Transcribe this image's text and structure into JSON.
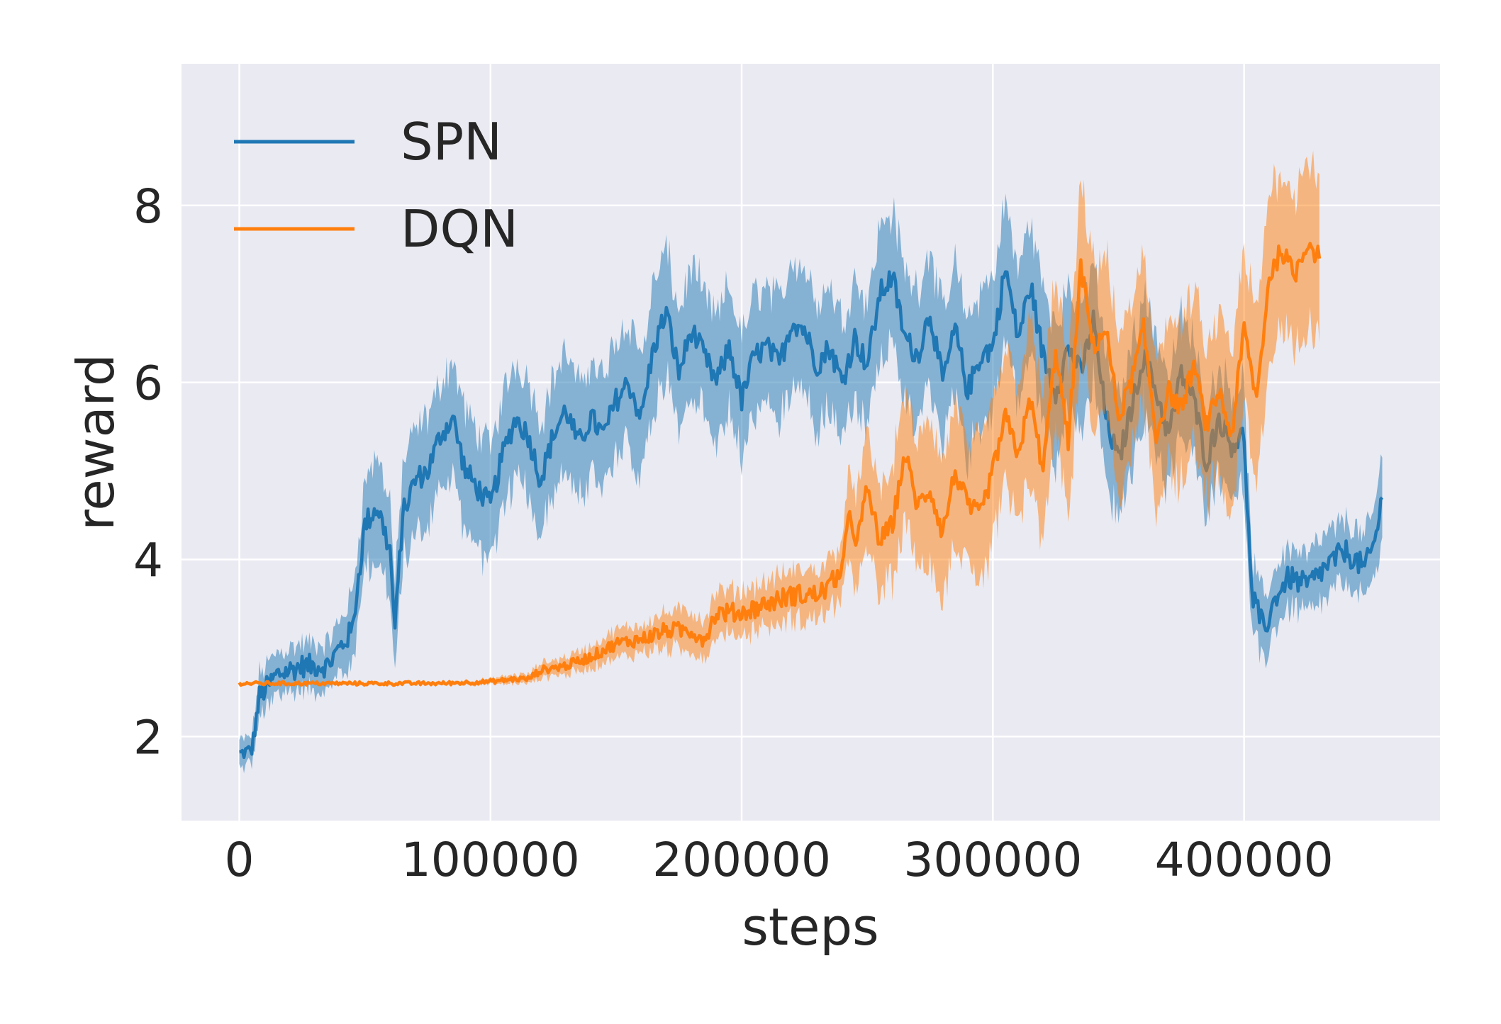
{
  "chart_data": {
    "type": "line",
    "title": "",
    "xlabel": "steps",
    "ylabel": "reward",
    "xlim": [
      -23000,
      478000
    ],
    "ylim": [
      1.05,
      9.6
    ],
    "xticks": [
      0,
      100000,
      200000,
      300000,
      400000
    ],
    "xtick_labels": [
      "0",
      "100000",
      "200000",
      "300000",
      "400000"
    ],
    "yticks": [
      2,
      4,
      6,
      8
    ],
    "ytick_labels": [
      "2",
      "4",
      "6",
      "8"
    ],
    "grid": true,
    "legend": "top-left",
    "series": [
      {
        "name": "SPN",
        "color": "#1f77b4",
        "x": [
          0,
          5000,
          8000,
          15000,
          25000,
          35000,
          40000,
          45000,
          50000,
          55000,
          60000,
          62000,
          65000,
          70000,
          75000,
          80000,
          85000,
          90000,
          95000,
          100000,
          105000,
          110000,
          115000,
          120000,
          125000,
          130000,
          135000,
          140000,
          145000,
          150000,
          155000,
          160000,
          165000,
          170000,
          175000,
          180000,
          185000,
          190000,
          195000,
          200000,
          205000,
          210000,
          215000,
          220000,
          225000,
          230000,
          235000,
          240000,
          245000,
          250000,
          255000,
          260000,
          265000,
          270000,
          275000,
          280000,
          285000,
          290000,
          295000,
          300000,
          305000,
          310000,
          315000,
          320000,
          325000,
          330000,
          335000,
          340000,
          345000,
          350000,
          355000,
          360000,
          365000,
          370000,
          375000,
          380000,
          385000,
          390000,
          395000,
          400000,
          403000,
          408000,
          413000,
          418000,
          425000,
          432000,
          440000,
          448000,
          452000,
          455000
        ],
        "y": [
          1.8,
          1.85,
          2.45,
          2.7,
          2.8,
          2.8,
          3.0,
          3.2,
          4.4,
          4.6,
          4.1,
          3.2,
          4.5,
          4.9,
          5.0,
          5.4,
          5.6,
          5.0,
          4.8,
          4.6,
          5.2,
          5.6,
          5.4,
          4.9,
          5.4,
          5.7,
          5.3,
          5.6,
          5.4,
          5.8,
          6.0,
          5.6,
          6.4,
          6.8,
          6.1,
          6.6,
          6.3,
          6.0,
          6.4,
          5.8,
          6.3,
          6.4,
          6.2,
          6.7,
          6.6,
          6.2,
          6.4,
          6.0,
          6.5,
          6.2,
          7.0,
          7.2,
          6.5,
          6.3,
          6.8,
          6.0,
          6.6,
          5.9,
          6.3,
          6.4,
          7.3,
          6.5,
          7.1,
          6.3,
          5.9,
          6.4,
          6.1,
          6.7,
          5.6,
          5.1,
          5.7,
          6.3,
          5.9,
          5.4,
          6.1,
          5.8,
          5.1,
          5.6,
          5.3,
          5.4,
          3.6,
          3.2,
          3.6,
          3.8,
          3.7,
          3.9,
          4.1,
          3.9,
          4.2,
          4.7
        ],
        "band": [
          0.15,
          0.15,
          0.25,
          0.25,
          0.25,
          0.25,
          0.3,
          0.4,
          0.5,
          0.55,
          0.6,
          0.5,
          0.55,
          0.55,
          0.6,
          0.6,
          0.65,
          0.65,
          0.65,
          0.65,
          0.65,
          0.65,
          0.65,
          0.65,
          0.65,
          0.65,
          0.65,
          0.65,
          0.65,
          0.7,
          0.7,
          0.7,
          0.7,
          0.7,
          0.7,
          0.7,
          0.7,
          0.7,
          0.7,
          0.7,
          0.7,
          0.7,
          0.7,
          0.7,
          0.7,
          0.7,
          0.7,
          0.7,
          0.7,
          0.7,
          0.75,
          0.75,
          0.75,
          0.75,
          0.75,
          0.75,
          0.75,
          0.75,
          0.75,
          0.75,
          0.75,
          0.75,
          0.75,
          0.75,
          0.75,
          0.7,
          0.7,
          0.7,
          0.7,
          0.7,
          0.7,
          0.7,
          0.65,
          0.65,
          0.65,
          0.65,
          0.6,
          0.6,
          0.6,
          0.6,
          0.4,
          0.35,
          0.35,
          0.35,
          0.35,
          0.35,
          0.35,
          0.35,
          0.4,
          0.45
        ],
        "noise": 0.14
      },
      {
        "name": "DQN",
        "color": "#ff7f0e",
        "x": [
          0,
          20000,
          40000,
          60000,
          80000,
          100000,
          110000,
          115000,
          120000,
          130000,
          140000,
          150000,
          160000,
          170000,
          180000,
          185000,
          190000,
          200000,
          210000,
          220000,
          230000,
          235000,
          240000,
          243000,
          246000,
          250000,
          255000,
          260000,
          265000,
          270000,
          275000,
          280000,
          285000,
          290000,
          295000,
          300000,
          305000,
          310000,
          315000,
          320000,
          325000,
          330000,
          335000,
          340000,
          345000,
          350000,
          355000,
          360000,
          365000,
          370000,
          375000,
          380000,
          385000,
          390000,
          395000,
          400000,
          405000,
          410000,
          415000,
          420000,
          425000,
          430000
        ],
        "y": [
          2.6,
          2.6,
          2.6,
          2.6,
          2.6,
          2.62,
          2.65,
          2.65,
          2.75,
          2.8,
          2.9,
          3.05,
          3.1,
          3.2,
          3.2,
          3.1,
          3.4,
          3.4,
          3.5,
          3.6,
          3.6,
          3.7,
          3.9,
          4.5,
          4.2,
          4.8,
          4.2,
          4.4,
          5.2,
          4.6,
          4.8,
          4.3,
          5.0,
          4.6,
          4.5,
          5.0,
          5.6,
          5.2,
          5.8,
          5.0,
          6.4,
          5.3,
          7.3,
          6.4,
          6.6,
          5.6,
          6.0,
          6.6,
          5.4,
          5.9,
          5.7,
          6.2,
          5.5,
          5.9,
          5.4,
          6.6,
          5.8,
          7.2,
          7.5,
          7.2,
          7.6,
          7.4
        ],
        "band": [
          0.02,
          0.02,
          0.02,
          0.02,
          0.02,
          0.03,
          0.05,
          0.05,
          0.08,
          0.1,
          0.12,
          0.15,
          0.17,
          0.2,
          0.22,
          0.22,
          0.23,
          0.25,
          0.25,
          0.27,
          0.28,
          0.3,
          0.35,
          0.5,
          0.55,
          0.6,
          0.6,
          0.65,
          0.7,
          0.7,
          0.75,
          0.75,
          0.75,
          0.75,
          0.8,
          0.8,
          0.8,
          0.85,
          0.85,
          0.85,
          0.85,
          0.85,
          0.9,
          0.9,
          0.85,
          0.85,
          0.85,
          0.85,
          0.85,
          0.85,
          0.85,
          0.85,
          0.85,
          0.85,
          0.85,
          0.9,
          0.9,
          0.95,
          0.95,
          0.95,
          0.95,
          0.95
        ],
        "noise": 0.12
      }
    ]
  }
}
